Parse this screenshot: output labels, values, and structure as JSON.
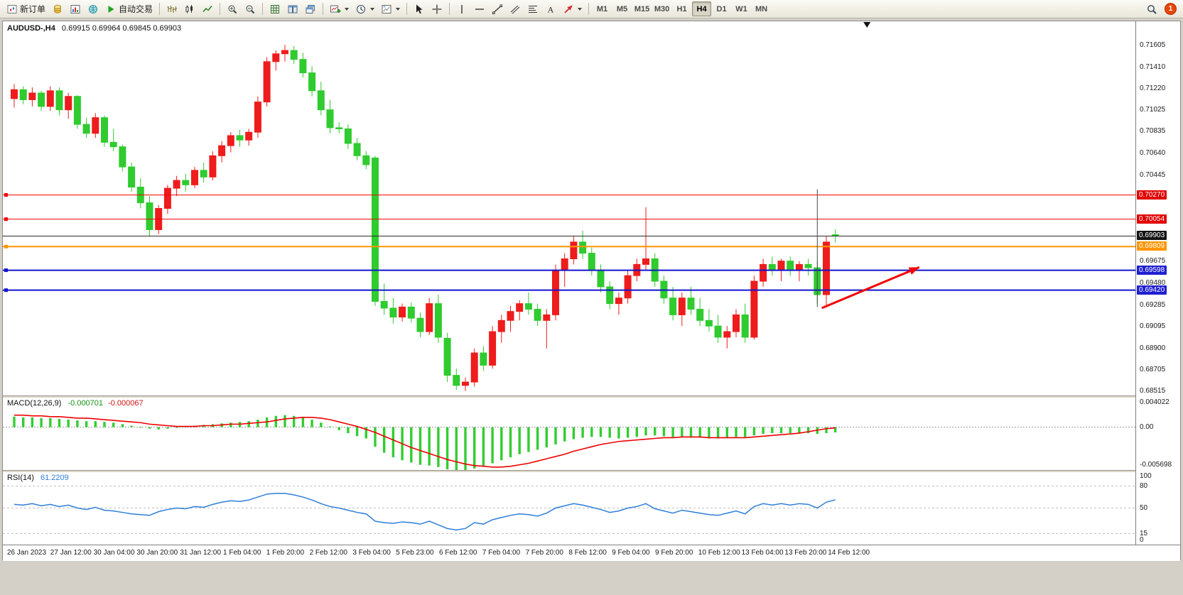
{
  "toolbar": {
    "new_order_label": "新订单",
    "auto_trading_label": "自动交易",
    "timeframes": [
      "M1",
      "M5",
      "M15",
      "M30",
      "H1",
      "H4",
      "D1",
      "W1",
      "MN"
    ],
    "active_timeframe": "H4",
    "notification_count": "1",
    "icons": [
      "new-order-icon",
      "market-watch-icon",
      "chart-window-icon",
      "navigator-icon",
      "play-icon",
      "bar-chart-icon",
      "candlestick-chart-icon",
      "line-chart-icon",
      "zoom-in-icon",
      "zoom-out-icon",
      "grid-icon",
      "tile-windows-icon",
      "cascade-windows-icon",
      "indicators-icon",
      "periods-clock-icon",
      "templates-icon",
      "cursor-icon",
      "crosshair-icon",
      "vertical-line-icon",
      "horizontal-line-icon",
      "trendline-icon",
      "channel-icon",
      "fibonacci-icon",
      "text-icon",
      "arrows-icon",
      "search-icon"
    ]
  },
  "chart_data": {
    "type": "candlestick",
    "symbol": "AUDUSD",
    "timeframe": "H4",
    "x_labels": [
      "26 Jan 2023",
      "27 Jan 12:00",
      "30 Jan 04:00",
      "30 Jan 20:00",
      "31 Jan 12:00",
      "1 Feb 04:00",
      "1 Feb 20:00",
      "2 Feb 12:00",
      "3 Feb 04:00",
      "5 Feb 23:00",
      "6 Feb 12:00",
      "7 Feb 04:00",
      "7 Feb 20:00",
      "8 Feb 12:00",
      "9 Feb 04:00",
      "9 Feb 20:00",
      "10 Feb 12:00",
      "13 Feb 04:00",
      "13 Feb 20:00",
      "14 Feb 12:00"
    ],
    "main": {
      "title": "AUDUSD-,H4",
      "ohlc": "0.69915 0.69964 0.69845 0.69903",
      "price_min": 0.6848,
      "price_max": 0.7182,
      "up_color": "#ee1c1c",
      "down_color": "#2fcb2f",
      "axis_ticks": [
        "0.71605",
        "0.71410",
        "0.71220",
        "0.71025",
        "0.70835",
        "0.70640",
        "0.70445",
        "0.69675",
        "0.69480",
        "0.69285",
        "0.69095",
        "0.68900",
        "0.68705",
        "0.68515"
      ],
      "levels": [
        {
          "price": 0.7027,
          "label": "0.70270",
          "color": "#f20000",
          "badge_color": "#e00000",
          "width": 1
        },
        {
          "price": 0.70054,
          "label": "0.70054",
          "color": "#f20000",
          "badge_color": "#e00000",
          "width": 1
        },
        {
          "price": 0.69809,
          "label": "0.69809",
          "color": "#ff9500",
          "badge_color": "#ff9500",
          "width": 2
        },
        {
          "price": 0.69598,
          "label": "0.69598",
          "color": "#1414cc",
          "badge_color": "#1f1fd0",
          "width": 2
        },
        {
          "price": 0.6942,
          "label": "0.69420",
          "color": "#1414cc",
          "badge_color": "#1f1fd0",
          "width": 2
        }
      ],
      "current_price": {
        "value": 0.69903,
        "label": "0.69903",
        "line_color": "#2b2b2b",
        "badge_color": "#141414"
      },
      "annotations": {
        "vline": {
          "x_index": 89,
          "from": 0.7032,
          "to": 0.6927,
          "color": "#4a4a4a"
        },
        "arrow": {
          "from": {
            "x_index": 89.5,
            "price": 0.6926
          },
          "to": {
            "x_index": 100.3,
            "price": 0.69625
          },
          "color": "#f20000"
        }
      },
      "shift_marker_x_ratio": 0.763,
      "candles": [
        [
          0.7113,
          0.7126,
          0.7105,
          0.7121
        ],
        [
          0.7121,
          0.7124,
          0.7108,
          0.7112
        ],
        [
          0.7112,
          0.7123,
          0.7106,
          0.7118
        ],
        [
          0.7118,
          0.712,
          0.7102,
          0.7106
        ],
        [
          0.7106,
          0.7124,
          0.7102,
          0.712
        ],
        [
          0.712,
          0.7123,
          0.7098,
          0.7103
        ],
        [
          0.7103,
          0.7118,
          0.7095,
          0.7115
        ],
        [
          0.7115,
          0.7116,
          0.7086,
          0.709
        ],
        [
          0.709,
          0.7096,
          0.7078,
          0.7082
        ],
        [
          0.7082,
          0.71,
          0.7078,
          0.7096
        ],
        [
          0.7096,
          0.7098,
          0.707,
          0.7074
        ],
        [
          0.7074,
          0.7086,
          0.7066,
          0.707
        ],
        [
          0.707,
          0.7072,
          0.7048,
          0.7052
        ],
        [
          0.7052,
          0.7056,
          0.703,
          0.7034
        ],
        [
          0.7034,
          0.7042,
          0.7015,
          0.702
        ],
        [
          0.702,
          0.7026,
          0.699,
          0.6996
        ],
        [
          0.6996,
          0.7018,
          0.6992,
          0.7015
        ],
        [
          0.7015,
          0.7036,
          0.701,
          0.7033
        ],
        [
          0.7033,
          0.7044,
          0.7026,
          0.704
        ],
        [
          0.704,
          0.7046,
          0.703,
          0.7036
        ],
        [
          0.7036,
          0.7052,
          0.7033,
          0.7049
        ],
        [
          0.7049,
          0.7056,
          0.7038,
          0.7043
        ],
        [
          0.7043,
          0.7066,
          0.704,
          0.7062
        ],
        [
          0.7062,
          0.7075,
          0.7056,
          0.7071
        ],
        [
          0.7071,
          0.7083,
          0.7065,
          0.708
        ],
        [
          0.708,
          0.7085,
          0.707,
          0.7076
        ],
        [
          0.7076,
          0.7086,
          0.7071,
          0.7083
        ],
        [
          0.7083,
          0.7115,
          0.7078,
          0.711
        ],
        [
          0.711,
          0.715,
          0.7106,
          0.7146
        ],
        [
          0.7146,
          0.7156,
          0.7138,
          0.7153
        ],
        [
          0.7153,
          0.7161,
          0.7146,
          0.7156
        ],
        [
          0.7156,
          0.716,
          0.7144,
          0.7148
        ],
        [
          0.7148,
          0.7154,
          0.7132,
          0.7136
        ],
        [
          0.7136,
          0.7142,
          0.7115,
          0.712
        ],
        [
          0.712,
          0.7128,
          0.7098,
          0.7103
        ],
        [
          0.7103,
          0.7112,
          0.7082,
          0.7087
        ],
        [
          0.7087,
          0.7092,
          0.7082,
          0.7086
        ],
        [
          0.7086,
          0.709,
          0.7068,
          0.7073
        ],
        [
          0.7073,
          0.7078,
          0.7058,
          0.7062
        ],
        [
          0.7062,
          0.7066,
          0.705,
          0.7054
        ],
        [
          0.706,
          0.7062,
          0.6928,
          0.6932
        ],
        [
          0.6932,
          0.6948,
          0.692,
          0.6926
        ],
        [
          0.6926,
          0.6935,
          0.6912,
          0.6918
        ],
        [
          0.6918,
          0.693,
          0.6914,
          0.6927
        ],
        [
          0.6927,
          0.6931,
          0.6913,
          0.6917
        ],
        [
          0.6917,
          0.6922,
          0.69,
          0.6905
        ],
        [
          0.6905,
          0.6935,
          0.6902,
          0.693
        ],
        [
          0.693,
          0.6938,
          0.6895,
          0.69
        ],
        [
          0.6899,
          0.6904,
          0.686,
          0.6866
        ],
        [
          0.6866,
          0.6872,
          0.6853,
          0.6857
        ],
        [
          0.6857,
          0.6864,
          0.6852,
          0.686
        ],
        [
          0.686,
          0.689,
          0.6856,
          0.6886
        ],
        [
          0.6886,
          0.6892,
          0.687,
          0.6875
        ],
        [
          0.6875,
          0.691,
          0.6872,
          0.6905
        ],
        [
          0.6905,
          0.692,
          0.6895,
          0.6915
        ],
        [
          0.6915,
          0.6928,
          0.6905,
          0.6923
        ],
        [
          0.6923,
          0.6933,
          0.6915,
          0.693
        ],
        [
          0.693,
          0.694,
          0.692,
          0.6925
        ],
        [
          0.6925,
          0.693,
          0.691,
          0.6915
        ],
        [
          0.6915,
          0.6925,
          0.689,
          0.692
        ],
        [
          0.692,
          0.6965,
          0.6915,
          0.696
        ],
        [
          0.696,
          0.6975,
          0.6945,
          0.697
        ],
        [
          0.697,
          0.699,
          0.6965,
          0.6985
        ],
        [
          0.6985,
          0.6995,
          0.697,
          0.6975
        ],
        [
          0.6975,
          0.698,
          0.6955,
          0.696
        ],
        [
          0.696,
          0.6965,
          0.694,
          0.6945
        ],
        [
          0.6945,
          0.695,
          0.6925,
          0.693
        ],
        [
          0.693,
          0.694,
          0.692,
          0.6935
        ],
        [
          0.6935,
          0.696,
          0.693,
          0.6955
        ],
        [
          0.6955,
          0.697,
          0.695,
          0.6965
        ],
        [
          0.6965,
          0.7016,
          0.696,
          0.697
        ],
        [
          0.697,
          0.6975,
          0.6945,
          0.695
        ],
        [
          0.695,
          0.6955,
          0.693,
          0.6935
        ],
        [
          0.6935,
          0.6945,
          0.6915,
          0.692
        ],
        [
          0.692,
          0.694,
          0.691,
          0.6935
        ],
        [
          0.6935,
          0.6945,
          0.692,
          0.6925
        ],
        [
          0.6925,
          0.6935,
          0.691,
          0.6915
        ],
        [
          0.6915,
          0.6925,
          0.6905,
          0.691
        ],
        [
          0.691,
          0.692,
          0.6895,
          0.69
        ],
        [
          0.69,
          0.691,
          0.689,
          0.6905
        ],
        [
          0.6905,
          0.6925,
          0.69,
          0.692
        ],
        [
          0.692,
          0.693,
          0.6895,
          0.69
        ],
        [
          0.69,
          0.6955,
          0.6898,
          0.695
        ],
        [
          0.695,
          0.697,
          0.6945,
          0.6965
        ],
        [
          0.6965,
          0.6972,
          0.6955,
          0.696
        ],
        [
          0.696,
          0.697,
          0.695,
          0.6968
        ],
        [
          0.6968,
          0.6972,
          0.6955,
          0.696
        ],
        [
          0.696,
          0.6968,
          0.695,
          0.6965
        ],
        [
          0.6965,
          0.697,
          0.6955,
          0.6962
        ],
        [
          0.6962,
          0.6968,
          0.693,
          0.6938
        ],
        [
          0.6938,
          0.699,
          0.6928,
          0.6985
        ],
        [
          0.69915,
          0.69964,
          0.69845,
          0.69903
        ]
      ]
    },
    "macd": {
      "label": "MACD(12,26,9)",
      "value_main": "-0.000701",
      "value_signal": "-0.000067",
      "max": 0.004022,
      "min": -0.005698,
      "axis_ticks": [
        "0.004022",
        "0.00",
        "-0.005698"
      ],
      "hist_color": "#32cd32",
      "signal_color": "#ee0000",
      "histogram": [
        0.0014,
        0.0013,
        0.0013,
        0.0012,
        0.0012,
        0.0011,
        0.001,
        0.0009,
        0.0008,
        0.0008,
        0.0007,
        0.0006,
        0.0004,
        0.0002,
        0.0,
        -0.0002,
        -0.0003,
        -0.0002,
        -0.0001,
        0.0001,
        0.0002,
        0.0003,
        0.0004,
        0.0005,
        0.0006,
        0.0007,
        0.0008,
        0.001,
        0.0013,
        0.0015,
        0.0016,
        0.0015,
        0.0013,
        0.001,
        0.0006,
        0.0001,
        -0.0004,
        -0.0008,
        -0.0012,
        -0.0015,
        -0.0026,
        -0.0034,
        -0.004,
        -0.0044,
        -0.0047,
        -0.005,
        -0.0051,
        -0.0053,
        -0.0056,
        -0.0057,
        -0.0057,
        -0.0055,
        -0.0052,
        -0.0048,
        -0.0044,
        -0.004,
        -0.0036,
        -0.0033,
        -0.003,
        -0.0027,
        -0.0023,
        -0.0019,
        -0.0016,
        -0.0014,
        -0.0013,
        -0.0013,
        -0.0014,
        -0.0015,
        -0.0014,
        -0.0013,
        -0.0011,
        -0.0011,
        -0.0012,
        -0.0013,
        -0.0013,
        -0.0014,
        -0.0014,
        -0.0015,
        -0.0015,
        -0.0014,
        -0.0013,
        -0.0013,
        -0.0011,
        -0.0009,
        -0.0008,
        -0.0008,
        -0.0008,
        -0.0008,
        -0.0008,
        -0.0009,
        -0.0008,
        -0.0007
      ],
      "signal": [
        0.0016,
        0.0016,
        0.0015,
        0.0015,
        0.0014,
        0.0014,
        0.0013,
        0.0012,
        0.0012,
        0.0011,
        0.001,
        0.0009,
        0.0008,
        0.0007,
        0.0006,
        0.0004,
        0.0003,
        0.0002,
        0.0001,
        0.0001,
        0.0001,
        0.0002,
        0.0002,
        0.0003,
        0.0004,
        0.0004,
        0.0005,
        0.0006,
        0.0007,
        0.0009,
        0.0011,
        0.0012,
        0.0013,
        0.0013,
        0.0012,
        0.001,
        0.0007,
        0.0004,
        0.0001,
        -0.0003,
        -0.0007,
        -0.0012,
        -0.0017,
        -0.0022,
        -0.0027,
        -0.0031,
        -0.0035,
        -0.0039,
        -0.0043,
        -0.0046,
        -0.0049,
        -0.0051,
        -0.0052,
        -0.0053,
        -0.0053,
        -0.0052,
        -0.005,
        -0.0048,
        -0.0045,
        -0.0042,
        -0.0039,
        -0.0036,
        -0.0032,
        -0.0029,
        -0.0026,
        -0.0023,
        -0.0021,
        -0.0019,
        -0.0018,
        -0.0017,
        -0.0016,
        -0.0015,
        -0.0014,
        -0.0014,
        -0.0013,
        -0.0013,
        -0.0013,
        -0.0014,
        -0.0014,
        -0.0014,
        -0.0014,
        -0.0014,
        -0.0013,
        -0.0012,
        -0.0011,
        -0.001,
        -0.0009,
        -0.0008,
        -0.0006,
        -0.0004,
        -0.0002,
        -0.0001
      ]
    },
    "rsi": {
      "label": "RSI(14)",
      "value": "61.2209",
      "max": 100,
      "min": 0,
      "levels": [
        80,
        50,
        15
      ],
      "axis_ticks": [
        "100",
        "80",
        "50",
        "15",
        "0"
      ],
      "line_color": "#2f7ed8",
      "values": [
        55,
        54,
        56,
        53,
        55,
        52,
        54,
        50,
        48,
        51,
        47,
        46,
        44,
        42,
        41,
        40,
        45,
        48,
        50,
        49,
        52,
        51,
        55,
        58,
        60,
        59,
        61,
        65,
        69,
        70,
        70,
        68,
        65,
        61,
        56,
        52,
        50,
        47,
        44,
        42,
        32,
        30,
        29,
        31,
        30,
        28,
        32,
        27,
        22,
        20,
        22,
        30,
        28,
        34,
        37,
        40,
        42,
        41,
        39,
        43,
        50,
        53,
        56,
        54,
        51,
        48,
        44,
        46,
        50,
        52,
        56,
        49,
        46,
        43,
        47,
        45,
        43,
        41,
        40,
        43,
        46,
        42,
        52,
        56,
        54,
        56,
        54,
        56,
        55,
        50,
        58,
        61.22
      ]
    }
  }
}
